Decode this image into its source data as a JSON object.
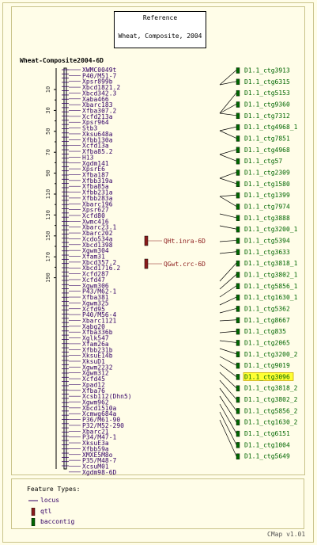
{
  "reference": {
    "title": "Reference",
    "subtitle": "Wheat, Composite, 2004"
  },
  "map_title": "Wheat-Composite2004-6D",
  "scale_ticks": [
    "10",
    "30",
    "50",
    "70",
    "90",
    "110",
    "130",
    "150",
    "170",
    "190"
  ],
  "markers": [
    "XWMC0049t",
    "P40/M51-7",
    "Xpsr899b",
    "Xbcd1821.2",
    "Xbcd342.3",
    "Xaba466",
    "Xbarc183",
    "Xfba307.2",
    "Xcfd213a",
    "Xpsr964",
    "Stb3",
    "Xksu648a",
    "Xfbb130a",
    "Xcfd13a",
    "Xfba85.2",
    "H13",
    "Xgdm141",
    "XpsrE6",
    "Xfba187",
    "Xfbb319a",
    "Xfba85a",
    "Xfbb231a",
    "Xfbb283a",
    "Xbarc196",
    "Xpsr627",
    "Xcfd80",
    "Xwmc416",
    "Xbarc23.1",
    "Xbarc202",
    "Xcdo534a",
    "Xbcd1398",
    "Xgwm304",
    "Xfam31",
    "Xbcd357.2",
    "Xbcd1716.2",
    "Xcfd287",
    "Xcfd47",
    "Xgwm306",
    "P43/M62-1",
    "Xfba381",
    "Xgwm325",
    "Xcfd95",
    "P40/M56-4",
    "Xbarc1121",
    "Xabg20",
    "Xfba336b",
    "Xglk547",
    "Xfam26a",
    "Xfbb231b",
    "XksuE14b",
    "XksuD1",
    "Xgwm2232",
    "Xgwm312",
    "Xcfd45",
    "Xpad12",
    "Xfba76",
    "Xcsb112(Dhn5)",
    "Xgwm962",
    "Xbcd1510a",
    "Xcmwg684a",
    "P36/M61-90",
    "P32/M52-290",
    "Xbarc21",
    "P34/M47-1",
    "XksuE3a",
    "Xfbb59a",
    "XMXE5M8o",
    "P35/M48-7",
    "XcsuM01",
    "Xgdm98-6D"
  ],
  "qtls": [
    {
      "label": "QHt.inra-6D"
    },
    {
      "label": "QGwt.crc-6D"
    }
  ],
  "contigs": [
    "D1.1_ctg3913",
    "D1.1_ctg6315",
    "D1.1_ctg5153",
    "D1.1_ctg9360",
    "D1.1_ctg7312",
    "D1.1_ctg4968_1",
    "D1.1_ctg7851",
    "D1.1_ctg4968",
    "D1.1_ctg57",
    "D1.1_ctg2309",
    "D1.1_ctg1580",
    "D1.1_ctg1399",
    "D1.1_ctg7974",
    "D1.1_ctg3888",
    "D1.1_ctg3200_1",
    "D1.1_ctg5394",
    "D1.1_ctg3633",
    "D1.1_ctg3818_1",
    "D1.1_ctg3802_1",
    "D1.1_ctg5856_1",
    "D1.1_ctg1630_1",
    "D1.1_ctg5362",
    "D1.1_ctg8667",
    "D1.1_ctg835",
    "D1.1_ctg2065",
    "D1.1_ctg3200_2",
    "D1.1_ctg9019",
    "D1.1_ctg3096",
    "D1.1_ctg3818_2",
    "D1.1_ctg3802_2",
    "D1.1_ctg5856_2",
    "D1.1_ctg1630_2",
    "D1.1_ctg6151",
    "D1.1_ctg1004",
    "D1.1_ctg5649"
  ],
  "highlighted_contig": "D1.1_ctg3096",
  "legend": {
    "title": "Feature Types:",
    "items": [
      {
        "label": "locus",
        "color": "#330066"
      },
      {
        "label": "qtl",
        "color": "#8b1a1a"
      },
      {
        "label": "baccontig",
        "color": "#006600"
      }
    ]
  },
  "footer": "CMap v1.01",
  "colors": {
    "background": "#fffde8",
    "frame": "#c9c38a",
    "marker_text": "#330066",
    "qtl": "#8b1a1a",
    "contig_text": "#006600",
    "highlight": "#ffff33"
  }
}
